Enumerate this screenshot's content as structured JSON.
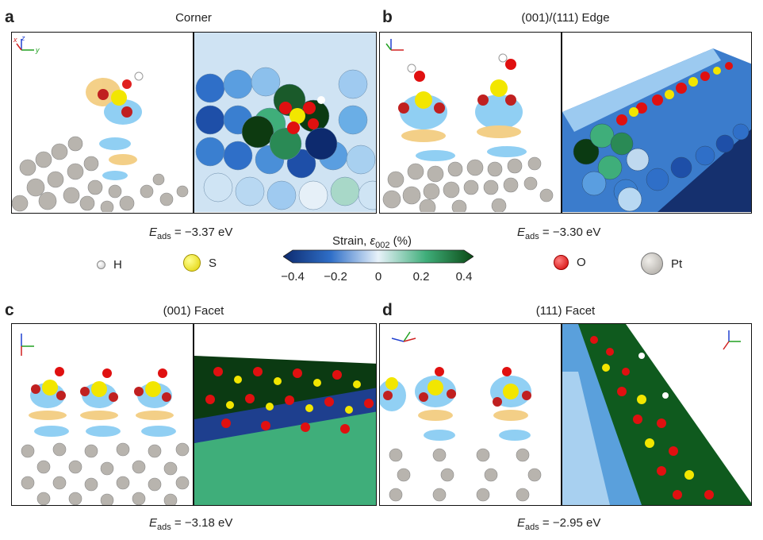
{
  "panels": [
    {
      "letter": "a",
      "title": "Corner",
      "eads_prefix": "E",
      "eads_sub": "ads",
      "eads_value": " = −3.37 eV"
    },
    {
      "letter": "b",
      "title": "(001)/(111) Edge",
      "eads_prefix": "E",
      "eads_sub": "ads",
      "eads_value": " = −3.30 eV"
    },
    {
      "letter": "c",
      "title": "(001) Facet",
      "eads_prefix": "E",
      "eads_sub": "ads",
      "eads_value": " = −3.18 eV"
    },
    {
      "letter": "d",
      "title": "(111) Facet",
      "eads_prefix": "E",
      "eads_sub": "ads",
      "eads_value": " = −2.95 eV"
    }
  ],
  "legend": {
    "items": [
      {
        "label": "H",
        "color": "#ffffff"
      },
      {
        "label": "S",
        "color": "#f2e600"
      },
      {
        "label": "O",
        "color": "#e01010"
      },
      {
        "label": "Pt",
        "color": "#b8b4ae"
      }
    ],
    "colorbar": {
      "title_prefix": "Strain, ",
      "title_symbol": "ε",
      "title_sub": "002",
      "title_suffix": " (%)",
      "ticks": [
        "−0.4",
        "−0.2",
        "0",
        "0.2",
        "0.4"
      ],
      "colors": [
        "#0d2a6e",
        "#2f6fc8",
        "#e8f2fa",
        "#3fae7a",
        "#0b4a14"
      ]
    }
  },
  "axes_labels": {
    "x": "x",
    "y": "y",
    "z": "z"
  },
  "colors": {
    "iso_blue": "#4fb0e8",
    "iso_orange": "#f0b040",
    "pt_grey": "#b8b4ae"
  }
}
